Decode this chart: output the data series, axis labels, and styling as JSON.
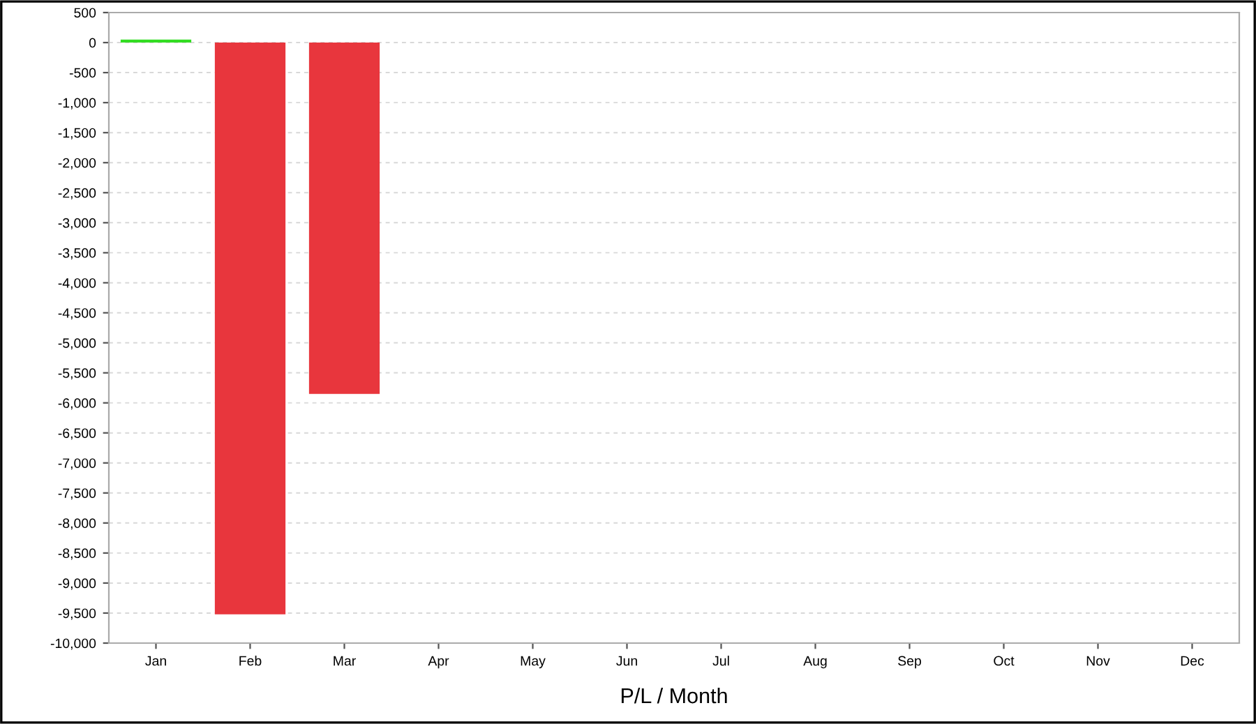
{
  "chart_data": {
    "type": "bar",
    "xlabel": "P/L / Month",
    "categories": [
      "Jan",
      "Feb",
      "Mar",
      "Apr",
      "May",
      "Jun",
      "Jul",
      "Aug",
      "Sep",
      "Oct",
      "Nov",
      "Dec"
    ],
    "values": [
      50,
      -9520,
      -5850,
      null,
      null,
      null,
      null,
      null,
      null,
      null,
      null,
      null
    ],
    "colors": [
      "#33dd22",
      "#e8363d",
      "#e8363d",
      "#e8363d",
      "#e8363d",
      "#e8363d",
      "#e8363d",
      "#e8363d",
      "#e8363d",
      "#e8363d",
      "#e8363d",
      "#e8363d"
    ],
    "ylim": [
      -10000,
      500
    ],
    "yticks": [
      {
        "value": -10000,
        "label": "-10,000"
      },
      {
        "value": -9500,
        "label": "-9,500"
      },
      {
        "value": -9000,
        "label": "-9,000"
      },
      {
        "value": -8500,
        "label": "-8,500"
      },
      {
        "value": -8000,
        "label": "-8,000"
      },
      {
        "value": -7500,
        "label": "-7,500"
      },
      {
        "value": -7000,
        "label": "-7,000"
      },
      {
        "value": -6500,
        "label": "-6,500"
      },
      {
        "value": -6000,
        "label": "-6,000"
      },
      {
        "value": -5500,
        "label": "-5,500"
      },
      {
        "value": -5000,
        "label": "-5,000"
      },
      {
        "value": -4500,
        "label": "-4,500"
      },
      {
        "value": -4000,
        "label": "-4,000"
      },
      {
        "value": -3500,
        "label": "-3,500"
      },
      {
        "value": -3000,
        "label": "-3,000"
      },
      {
        "value": -2500,
        "label": "-2,500"
      },
      {
        "value": -2000,
        "label": "-2,000"
      },
      {
        "value": -1500,
        "label": "-1,500"
      },
      {
        "value": -1000,
        "label": "-1,000"
      },
      {
        "value": -500,
        "label": "-500"
      },
      0,
      500
    ],
    "grid": "y"
  }
}
